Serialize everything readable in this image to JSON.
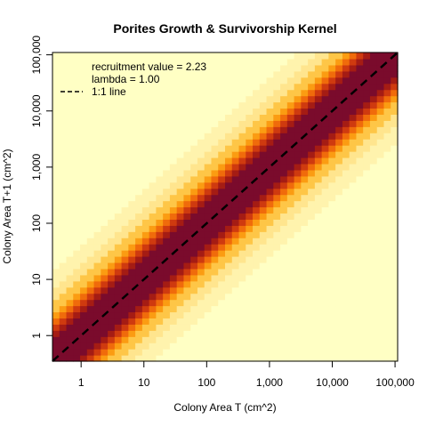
{
  "chart_data": {
    "type": "heatmap",
    "title": "Porites Growth & Survivorship Kernel",
    "xlabel": "Colony Area T (cm^2)",
    "ylabel": "Colony Area T+1 (cm^2)",
    "x_scale": "log10",
    "y_scale": "log10",
    "xlim": [
      0.35,
      110000
    ],
    "ylim": [
      0.35,
      110000
    ],
    "x_ticks": [
      {
        "value": 1,
        "label": "1"
      },
      {
        "value": 10,
        "label": "10"
      },
      {
        "value": 100,
        "label": "100"
      },
      {
        "value": 1000,
        "label": "1,000"
      },
      {
        "value": 10000,
        "label": "10,000"
      },
      {
        "value": 100000,
        "label": "100,000"
      }
    ],
    "y_ticks": [
      {
        "value": 1,
        "label": "1"
      },
      {
        "value": 10,
        "label": "10"
      },
      {
        "value": 100,
        "label": "100"
      },
      {
        "value": 1000,
        "label": "1,000"
      },
      {
        "value": 10000,
        "label": "10,000"
      },
      {
        "value": 100000,
        "label": "100,000"
      }
    ],
    "grid": false,
    "grid_cells": 50,
    "kernel_band": {
      "center": "diagonal y = x",
      "description": "probability density peaks along the 1:1 line and decays with distance from it"
    },
    "color_scale": [
      "#7a0b2c",
      "#a51c14",
      "#cf3a0f",
      "#f06b0b",
      "#fb9c12",
      "#fec647",
      "#ffe58e",
      "#fff3ad",
      "#ffffc4"
    ],
    "reference_line": {
      "label": "1:1 line",
      "style": "dashed",
      "color": "#000000"
    },
    "legend": {
      "placement": "top-left",
      "lines": [
        "recruitment value = 2.23",
        "lambda = 1.00"
      ],
      "entry_label": "1:1 line"
    }
  }
}
